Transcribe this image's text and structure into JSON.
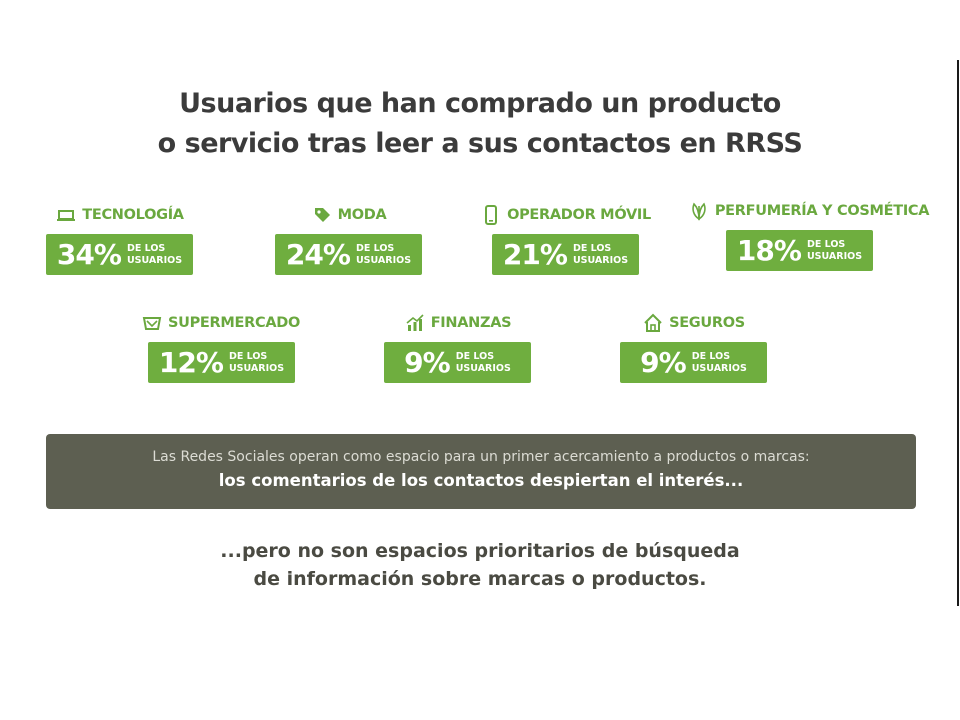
{
  "title": {
    "line1": "Usuarios que han comprado un producto",
    "line2": "o servicio tras leer a sus contactos en RRSS"
  },
  "categories": [
    {
      "label": "TECNOLOGÍA",
      "icon": "laptop-icon",
      "percent": "34%",
      "sub1": "DE LOS",
      "sub2": "USUARIOS"
    },
    {
      "label": "MODA",
      "icon": "tag-icon",
      "percent": "24%",
      "sub1": "DE LOS",
      "sub2": "USUARIOS"
    },
    {
      "label": "OPERADOR MÓVIL",
      "icon": "phone-icon",
      "percent": "21%",
      "sub1": "DE LOS",
      "sub2": "USUARIOS"
    },
    {
      "label": "PERFUMERÍA Y COSMÉTICA",
      "icon": "leaf-icon",
      "percent": "18%",
      "sub1": "DE LOS",
      "sub2": "USUARIOS"
    },
    {
      "label": "SUPERMERCADO",
      "icon": "basket-icon",
      "percent": "12%",
      "sub1": "DE LOS",
      "sub2": "USUARIOS"
    },
    {
      "label": "FINANZAS",
      "icon": "chart-icon",
      "percent": "9%",
      "sub1": "DE LOS",
      "sub2": "USUARIOS"
    },
    {
      "label": "SEGUROS",
      "icon": "house-icon",
      "percent": "9%",
      "sub1": "DE LOS",
      "sub2": "USUARIOS"
    }
  ],
  "banner": {
    "line1": "Las Redes Sociales operan como espacio para un primer acercamiento a productos o marcas:",
    "line2": "los comentarios de los contactos despiertan el interés..."
  },
  "closing": {
    "line1": "...pero no son espacios prioritarios de búsqueda",
    "line2": "de información sobre marcas o productos."
  },
  "colors": {
    "accent": "#6fae3f",
    "banner": "#5d5f51",
    "text": "#3b3b3b"
  }
}
